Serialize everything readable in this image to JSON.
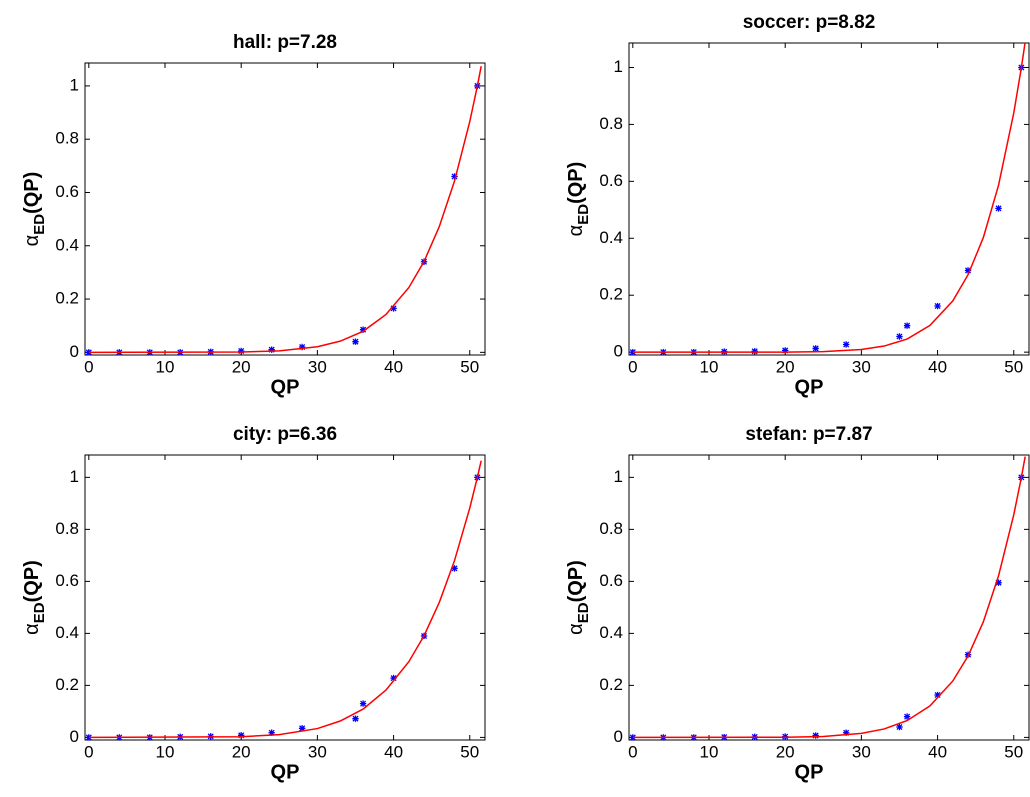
{
  "chart_data": [
    {
      "type": "scatter",
      "title": "hall: p=7.28",
      "xlabel": "QP",
      "ylabel": {
        "symbol": "α",
        "subscript": "ED",
        "suffix": "(QP)"
      },
      "xlim": [
        -0.5,
        52
      ],
      "ylim": [
        -0.01,
        1.086
      ],
      "xticks": [
        0,
        10,
        20,
        30,
        40,
        50
      ],
      "yticks": [
        0,
        0.2,
        0.4,
        0.6,
        0.8,
        1
      ],
      "series": [
        {
          "kind": "points",
          "color": "#0000ff",
          "x": [
            0,
            4,
            8,
            12,
            16,
            20,
            24,
            28,
            35,
            36,
            40,
            44,
            48,
            51
          ],
          "values": [
            0,
            0,
            0,
            0,
            0.002,
            0.005,
            0.01,
            0.02,
            0.04,
            0.085,
            0.165,
            0.34,
            0.66,
            1.0
          ]
        },
        {
          "kind": "line",
          "color": "#ff0000",
          "x": [
            0,
            20,
            25,
            30,
            33,
            36,
            39,
            42,
            44,
            46,
            48,
            50,
            51,
            51.5
          ],
          "values": [
            0,
            0.0011,
            0.0056,
            0.021,
            0.042,
            0.079,
            0.142,
            0.243,
            0.341,
            0.472,
            0.643,
            0.866,
            1,
            1.074
          ]
        }
      ]
    },
    {
      "type": "scatter",
      "title": "soccer: p=8.82",
      "xlabel": "QP",
      "ylabel": {
        "symbol": "α",
        "subscript": "ED",
        "suffix": "(QP)"
      },
      "xlim": [
        -0.5,
        52
      ],
      "ylim": [
        -0.01,
        1.086
      ],
      "xticks": [
        0,
        10,
        20,
        30,
        40,
        50
      ],
      "yticks": [
        0,
        0.2,
        0.4,
        0.6,
        0.8,
        1
      ],
      "series": [
        {
          "kind": "points",
          "color": "#0000ff",
          "x": [
            0,
            4,
            8,
            12,
            16,
            20,
            24,
            28,
            35,
            36,
            40,
            44,
            48,
            51
          ],
          "values": [
            0,
            0,
            0,
            0.002,
            0.003,
            0.006,
            0.013,
            0.027,
            0.055,
            0.093,
            0.162,
            0.287,
            0.505,
            1.0
          ]
        },
        {
          "kind": "line",
          "color": "#ff0000",
          "x": [
            0,
            20,
            25,
            30,
            33,
            36,
            39,
            42,
            44,
            46,
            48,
            50,
            51,
            51.5
          ],
          "values": [
            0,
            0.0003,
            0.0019,
            0.0093,
            0.0215,
            0.046,
            0.094,
            0.18,
            0.272,
            0.402,
            0.586,
            0.84,
            1,
            1.09
          ]
        }
      ]
    },
    {
      "type": "scatter",
      "title": "city: p=6.36",
      "xlabel": "QP",
      "ylabel": {
        "symbol": "α",
        "subscript": "ED",
        "suffix": "(QP)"
      },
      "xlim": [
        -0.5,
        52
      ],
      "ylim": [
        -0.01,
        1.086
      ],
      "xticks": [
        0,
        10,
        20,
        30,
        40,
        50
      ],
      "yticks": [
        0,
        0.2,
        0.4,
        0.6,
        0.8,
        1
      ],
      "series": [
        {
          "kind": "points",
          "color": "#0000ff",
          "x": [
            0,
            4,
            8,
            12,
            16,
            20,
            24,
            28,
            35,
            36,
            40,
            44,
            48,
            51
          ],
          "values": [
            0,
            0,
            0,
            0.002,
            0.004,
            0.008,
            0.018,
            0.035,
            0.072,
            0.13,
            0.228,
            0.39,
            0.65,
            1.0
          ]
        },
        {
          "kind": "line",
          "color": "#ff0000",
          "x": [
            0,
            20,
            25,
            30,
            33,
            36,
            39,
            42,
            44,
            46,
            48,
            50,
            51,
            51.5
          ],
          "values": [
            0,
            0.0026,
            0.0107,
            0.034,
            0.063,
            0.109,
            0.182,
            0.291,
            0.391,
            0.519,
            0.68,
            0.882,
            1,
            1.064
          ]
        }
      ]
    },
    {
      "type": "scatter",
      "title": "stefan: p=7.87",
      "xlabel": "QP",
      "ylabel": {
        "symbol": "α",
        "subscript": "ED",
        "suffix": "(QP)"
      },
      "xlim": [
        -0.5,
        52
      ],
      "ylim": [
        -0.01,
        1.086
      ],
      "xticks": [
        0,
        10,
        20,
        30,
        40,
        50
      ],
      "yticks": [
        0,
        0.2,
        0.4,
        0.6,
        0.8,
        1
      ],
      "series": [
        {
          "kind": "points",
          "color": "#0000ff",
          "x": [
            0,
            4,
            8,
            12,
            16,
            20,
            24,
            28,
            35,
            36,
            40,
            44,
            48,
            51
          ],
          "values": [
            0,
            0,
            0,
            0.001,
            0.002,
            0.003,
            0.007,
            0.018,
            0.04,
            0.08,
            0.163,
            0.318,
            0.595,
            1.0
          ]
        },
        {
          "kind": "line",
          "color": "#ff0000",
          "x": [
            0,
            20,
            25,
            30,
            33,
            36,
            39,
            42,
            44,
            46,
            48,
            50,
            51,
            51.5
          ],
          "values": [
            0,
            0.0006,
            0.0037,
            0.0154,
            0.0325,
            0.0645,
            0.121,
            0.217,
            0.313,
            0.444,
            0.621,
            0.856,
            1,
            1.08
          ]
        }
      ]
    }
  ]
}
